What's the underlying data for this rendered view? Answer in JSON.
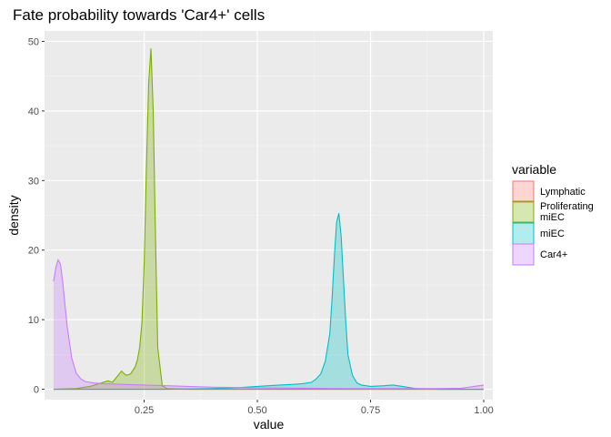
{
  "chart_data": {
    "type": "area",
    "title": "Fate probability towards 'Car4+' cells",
    "xlabel": "value",
    "ylabel": "density",
    "xlim": [
      0.03,
      1.02
    ],
    "ylim": [
      -1.5,
      51.5
    ],
    "x_ticks": [
      0.25,
      0.5,
      0.75,
      1.0
    ],
    "x_tick_labels": [
      "0.25",
      "0.50",
      "0.75",
      "1.00"
    ],
    "y_ticks": [
      0,
      10,
      20,
      30,
      40,
      50
    ],
    "y_tick_labels": [
      "0",
      "10",
      "20",
      "30",
      "40",
      "50"
    ],
    "grid": true,
    "legend": {
      "title": "variable",
      "placement": "right"
    },
    "series": [
      {
        "name": "Lymphatic",
        "color": "#F8766D",
        "x": [
          0.05,
          1.0
        ],
        "y": [
          0,
          0
        ]
      },
      {
        "name": "Proliferating\nmiEC",
        "color": "#7CAE00",
        "x": [
          0.05,
          0.1,
          0.13,
          0.15,
          0.17,
          0.18,
          0.19,
          0.2,
          0.21,
          0.22,
          0.23,
          0.235,
          0.24,
          0.245,
          0.25,
          0.255,
          0.26,
          0.265,
          0.27,
          0.275,
          0.28,
          0.29,
          0.3,
          0.35,
          0.5,
          0.7,
          1.0
        ],
        "y": [
          0,
          0.1,
          0.4,
          0.8,
          1.2,
          1.0,
          1.8,
          2.6,
          2.0,
          2.2,
          3.2,
          4.2,
          6.0,
          9.5,
          18.0,
          32.0,
          44.0,
          49.0,
          40.0,
          22.0,
          6.0,
          0.5,
          0.1,
          0,
          0,
          0,
          0
        ]
      },
      {
        "name": "miEC",
        "color": "#00BFC4",
        "x": [
          0.05,
          0.3,
          0.4,
          0.45,
          0.5,
          0.55,
          0.58,
          0.6,
          0.62,
          0.63,
          0.64,
          0.65,
          0.66,
          0.665,
          0.67,
          0.675,
          0.68,
          0.685,
          0.69,
          0.695,
          0.7,
          0.71,
          0.72,
          0.73,
          0.75,
          0.78,
          0.8,
          0.82,
          0.85,
          0.9,
          1.0
        ],
        "y": [
          0,
          0,
          0.1,
          0.2,
          0.4,
          0.6,
          0.7,
          0.8,
          1.0,
          1.5,
          2.2,
          4.0,
          8.0,
          13.0,
          19.0,
          24.0,
          25.3,
          22.0,
          16.0,
          10.0,
          5.0,
          2.0,
          0.9,
          0.6,
          0.4,
          0.5,
          0.6,
          0.4,
          0.1,
          0,
          0
        ]
      },
      {
        "name": "Car4+",
        "color": "#C77CFF",
        "x": [
          0.05,
          0.055,
          0.06,
          0.065,
          0.07,
          0.08,
          0.09,
          0.1,
          0.11,
          0.12,
          0.14,
          0.16,
          0.2,
          0.25,
          0.3,
          0.4,
          0.5,
          0.6,
          0.7,
          0.8,
          0.9,
          0.95,
          0.99,
          1.0
        ],
        "y": [
          15.5,
          17.5,
          18.6,
          18.0,
          15.5,
          9.0,
          4.5,
          2.3,
          1.5,
          1.1,
          0.9,
          0.8,
          0.7,
          0.6,
          0.5,
          0.3,
          0.2,
          0.15,
          0.1,
          0.1,
          0.1,
          0.15,
          0.5,
          0.6
        ]
      }
    ]
  }
}
